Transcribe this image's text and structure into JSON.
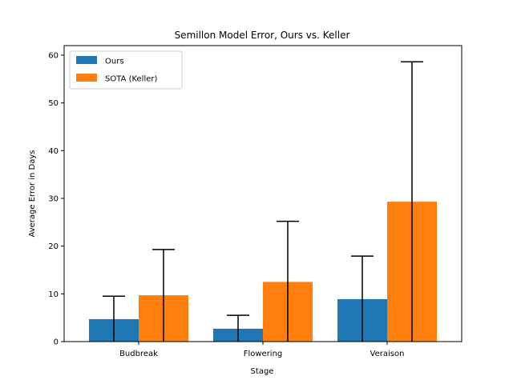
{
  "chart_data": {
    "type": "bar",
    "title": "Semillon Model Error, Ours vs. Keller",
    "xlabel": "Stage",
    "ylabel": "Average Error in Days",
    "categories": [
      "Budbreak",
      "Flowering",
      "Veraison"
    ],
    "series": [
      {
        "name": "Ours",
        "color": "#1f77b4",
        "values": [
          4.7,
          2.7,
          8.9
        ],
        "errors": [
          4.8,
          2.8,
          9.0
        ]
      },
      {
        "name": "SOTA (Keller)",
        "color": "#ff7f0e",
        "values": [
          9.7,
          12.5,
          29.3
        ],
        "errors": [
          9.6,
          12.7,
          29.3
        ]
      }
    ],
    "ylim": [
      0,
      62
    ],
    "yticks": [
      0,
      10,
      20,
      30,
      40,
      50,
      60
    ],
    "grid": false,
    "legend_position": "top-left"
  }
}
